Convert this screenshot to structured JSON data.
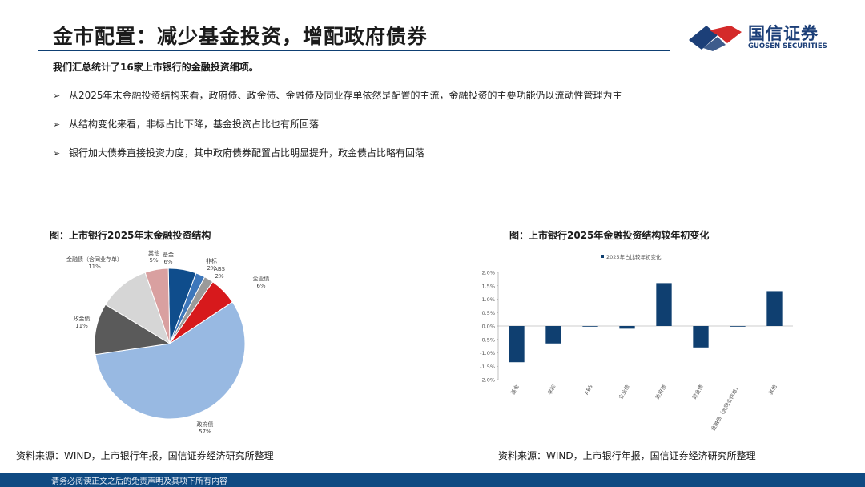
{
  "header": {
    "title": "金市配置：减少基金投资，增配政府债券",
    "logo_cn": "国信证券",
    "logo_en": "GUOSEN SECURITIES"
  },
  "intro": "我们汇总统计了16家上市银行的金融投资细项。",
  "bullets": [
    "从2025年末金融投资结构来看，政府债、政金债、金融债及同业存单依然是配置的主流，金融投资的主要功能仍以流动性管理为主",
    "从结构变化来看，非标占比下降，基金投资占比也有所回落",
    "银行加大债券直接投资力度，其中政府债券配置占比明显提升，政金债占比略有回落"
  ],
  "colors": {
    "accent": "#0e3f73",
    "footer": "#0f4a82",
    "logo_red": "#d42a2a"
  },
  "chart_data": [
    {
      "type": "pie",
      "title": "图：上市银行2025年末金融投资结构",
      "slices": [
        {
          "label": "基金",
          "value": 6,
          "value_label": "6%",
          "color": "#0f4d8c"
        },
        {
          "label": "非标",
          "value": 2,
          "value_label": "2%",
          "color": "#3d77bb"
        },
        {
          "label": "ABS",
          "value": 2,
          "value_label": "2%",
          "color": "#9a9a9a"
        },
        {
          "label": "企业债",
          "value": 6,
          "value_label": "6%",
          "color": "#d7191c"
        },
        {
          "label": "政府债",
          "value": 57,
          "value_label": "57%",
          "color": "#98b9e2"
        },
        {
          "label": "政金债",
          "value": 11,
          "value_label": "11%",
          "color": "#5a5a5a"
        },
        {
          "label": "金融债（含同业存单）",
          "value": 11,
          "value_label": "11%",
          "color": "#d6d6d6"
        },
        {
          "label": "其他",
          "value": 5,
          "value_label": "5%",
          "color": "#d9a0a0"
        }
      ]
    },
    {
      "type": "bar",
      "title": "图：上市银行2025年金融投资结构较年初变化",
      "legend": "2025年占比较年初变化",
      "categories": [
        "基金",
        "非标",
        "ABS",
        "企业债",
        "政府债",
        "政金债",
        "金融债（含同业存单）",
        "其他"
      ],
      "values": [
        -1.35,
        -0.65,
        0.0,
        -0.1,
        1.6,
        -0.8,
        -0.02,
        1.3
      ],
      "ylim": [
        -2.0,
        2.0
      ],
      "yticks": [
        "2.0%",
        "1.5%",
        "1.0%",
        "0.5%",
        "0.0%",
        "-0.5%",
        "-1.0%",
        "-1.5%",
        "-2.0%"
      ],
      "bar_color": "#0f3f70"
    }
  ],
  "sources": {
    "left": "资料来源：WIND，上市银行年报，国信证券经济研究所整理",
    "right": "资料来源：WIND，上市银行年报，国信证券经济研究所整理"
  },
  "footer": "请务必阅读正文之后的免责声明及其项下所有内容"
}
